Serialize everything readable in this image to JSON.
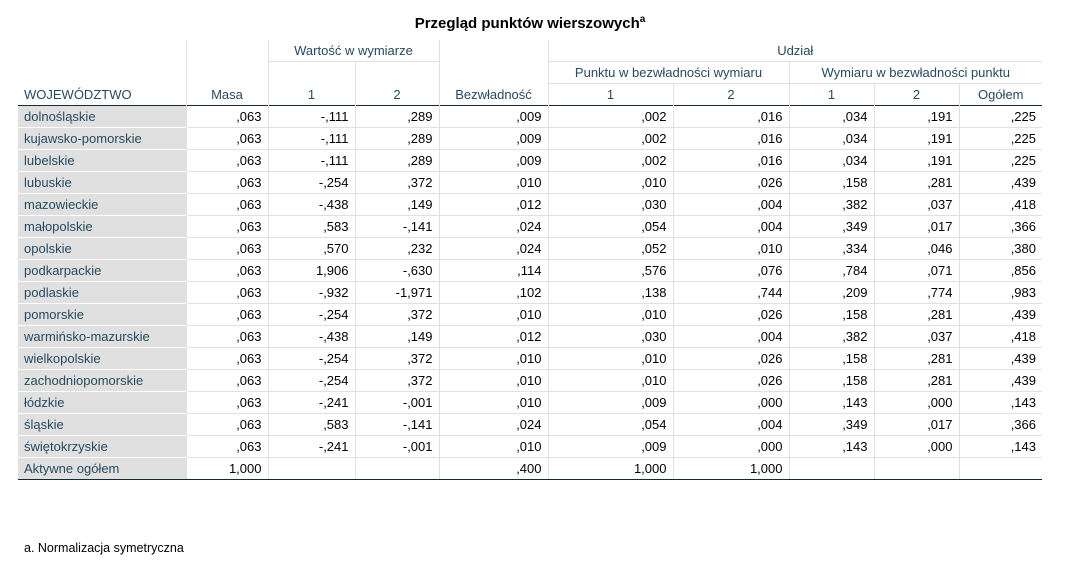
{
  "table": {
    "title": "Przegląd punktów wierszowych",
    "title_marker": "a",
    "header": {
      "group_value": "Wartość w wymiarze",
      "group_share": "Udział",
      "sub_point": "Punktu w bezwładności wymiaru",
      "sub_dim": "Wymiaru w bezwładności punktu",
      "col_row": "WOJEWÓDZTWO",
      "col_mass": "Masa",
      "col_dim1": "1",
      "col_dim2": "2",
      "col_inertia": "Bezwładność",
      "col_p1": "1",
      "col_p2": "2",
      "col_d1": "1",
      "col_d2": "2",
      "col_total": "Ogółem"
    },
    "rows": [
      [
        "dolnośląskie",
        ",063",
        "-,111",
        ",289",
        ",009",
        ",002",
        ",016",
        ",034",
        ",191",
        ",225"
      ],
      [
        "kujawsko-pomorskie",
        ",063",
        "-,111",
        ",289",
        ",009",
        ",002",
        ",016",
        ",034",
        ",191",
        ",225"
      ],
      [
        "lubelskie",
        ",063",
        "-,111",
        ",289",
        ",009",
        ",002",
        ",016",
        ",034",
        ",191",
        ",225"
      ],
      [
        "lubuskie",
        ",063",
        "-,254",
        ",372",
        ",010",
        ",010",
        ",026",
        ",158",
        ",281",
        ",439"
      ],
      [
        "mazowieckie",
        ",063",
        "-,438",
        ",149",
        ",012",
        ",030",
        ",004",
        ",382",
        ",037",
        ",418"
      ],
      [
        "małopolskie",
        ",063",
        ",583",
        "-,141",
        ",024",
        ",054",
        ",004",
        ",349",
        ",017",
        ",366"
      ],
      [
        "opolskie",
        ",063",
        ",570",
        ",232",
        ",024",
        ",052",
        ",010",
        ",334",
        ",046",
        ",380"
      ],
      [
        "podkarpackie",
        ",063",
        "1,906",
        "-,630",
        ",114",
        ",576",
        ",076",
        ",784",
        ",071",
        ",856"
      ],
      [
        "podlaskie",
        ",063",
        "-,932",
        "-1,971",
        ",102",
        ",138",
        ",744",
        ",209",
        ",774",
        ",983"
      ],
      [
        "pomorskie",
        ",063",
        "-,254",
        ",372",
        ",010",
        ",010",
        ",026",
        ",158",
        ",281",
        ",439"
      ],
      [
        "warmińsko-mazurskie",
        ",063",
        "-,438",
        ",149",
        ",012",
        ",030",
        ",004",
        ",382",
        ",037",
        ",418"
      ],
      [
        "wielkopolskie",
        ",063",
        "-,254",
        ",372",
        ",010",
        ",010",
        ",026",
        ",158",
        ",281",
        ",439"
      ],
      [
        "zachodniopomorskie",
        ",063",
        "-,254",
        ",372",
        ",010",
        ",010",
        ",026",
        ",158",
        ",281",
        ",439"
      ],
      [
        "łódzkie",
        ",063",
        "-,241",
        "-,001",
        ",010",
        ",009",
        ",000",
        ",143",
        ",000",
        ",143"
      ],
      [
        "śląskie",
        ",063",
        ",583",
        "-,141",
        ",024",
        ",054",
        ",004",
        ",349",
        ",017",
        ",366"
      ],
      [
        "świętokrzyskie",
        ",063",
        "-,241",
        "-,001",
        ",010",
        ",009",
        ",000",
        ",143",
        ",000",
        ",143"
      ]
    ],
    "total_row": [
      "Aktywne ogółem",
      "1,000",
      "",
      "",
      ",400",
      "1,000",
      "1,000",
      "",
      "",
      ""
    ],
    "footnote": "a. Normalizacja symetryczna"
  }
}
